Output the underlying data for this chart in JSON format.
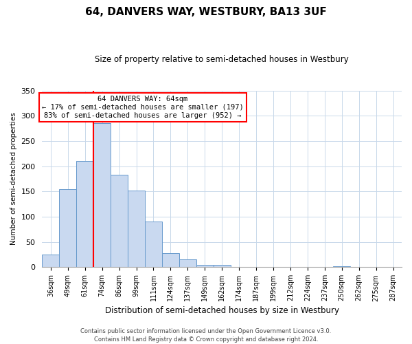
{
  "title": "64, DANVERS WAY, WESTBURY, BA13 3UF",
  "subtitle": "Size of property relative to semi-detached houses in Westbury",
  "xlabel": "Distribution of semi-detached houses by size in Westbury",
  "ylabel": "Number of semi-detached properties",
  "bin_labels": [
    "36sqm",
    "49sqm",
    "61sqm",
    "74sqm",
    "86sqm",
    "99sqm",
    "111sqm",
    "124sqm",
    "137sqm",
    "149sqm",
    "162sqm",
    "174sqm",
    "187sqm",
    "199sqm",
    "212sqm",
    "224sqm",
    "237sqm",
    "250sqm",
    "262sqm",
    "275sqm",
    "287sqm"
  ],
  "bar_values": [
    25,
    155,
    210,
    285,
    183,
    152,
    90,
    28,
    15,
    5,
    5,
    0,
    0,
    0,
    0,
    0,
    0,
    2,
    0,
    0,
    0
  ],
  "bar_color": "#c9d9f0",
  "bar_edge_color": "#6699cc",
  "vline_color": "red",
  "vline_x": 2.5,
  "annotation_title": "64 DANVERS WAY: 64sqm",
  "annotation_line1": "← 17% of semi-detached houses are smaller (197)",
  "annotation_line2": "83% of semi-detached houses are larger (952) →",
  "annotation_box_color": "white",
  "annotation_box_edge": "red",
  "ylim": [
    0,
    350
  ],
  "yticks": [
    0,
    50,
    100,
    150,
    200,
    250,
    300,
    350
  ],
  "footer_line1": "Contains HM Land Registry data © Crown copyright and database right 2024.",
  "footer_line2": "Contains public sector information licensed under the Open Government Licence v3.0.",
  "background_color": "white",
  "grid_color": "#c8d8ea"
}
